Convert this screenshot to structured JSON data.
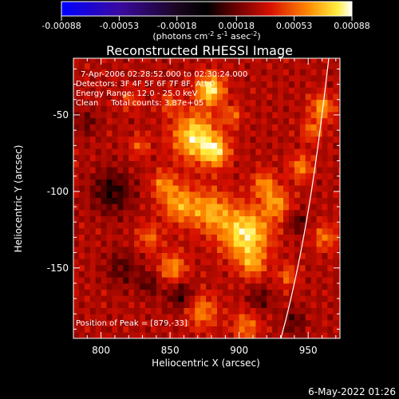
{
  "colorbar": {
    "ticks": [
      "-0.00088",
      "-0.00053",
      "-0.00018",
      "0.00018",
      "0.00053",
      "0.00088"
    ],
    "unit_prefix": "(photons cm",
    "unit_exp1": "-2",
    "unit_mid1": " s",
    "unit_exp2": "-1",
    "unit_mid2": " asec",
    "unit_exp3": "-2",
    "unit_suffix": ")",
    "range": [
      -0.00088,
      0.00088
    ],
    "colormap": "rhessi-flame (blue to black to red to yellow to white)"
  },
  "chart_data": {
    "type": "heatmap",
    "title": "Reconstructed RHESSI Image",
    "xlabel": "Heliocentric X (arcsec)",
    "ylabel": "Heliocentric Y (arcsec)",
    "xlim": [
      780,
      973
    ],
    "ylim": [
      -196,
      -13
    ],
    "xticks": [
      "800",
      "850",
      "900",
      "950"
    ],
    "xtick_values": [
      800,
      850,
      900,
      950
    ],
    "yticks": [
      "-50",
      "-100",
      "-150"
    ],
    "ytick_values": [
      -50,
      -100,
      -150
    ],
    "annotations": [
      "7-Apr-2006 02:28:52.000 to 02:30:24.000",
      "Detectors: 3F 4F 5F 6F 7F 8F, Att 0",
      "Energy Range: 12.0 - 25.0 keV",
      "Clean     Total counts: 3.87e+05"
    ],
    "peak_label": "Position of Peak = [879,-33]",
    "peak": [
      879,
      -33
    ],
    "intensity_range": [
      -0.00088,
      0.00088
    ],
    "pixel_size_arcsec": 4,
    "grid": false,
    "limb_line_color": "#ffffff"
  },
  "footer": {
    "timestamp": "6-May-2022 01:26"
  }
}
